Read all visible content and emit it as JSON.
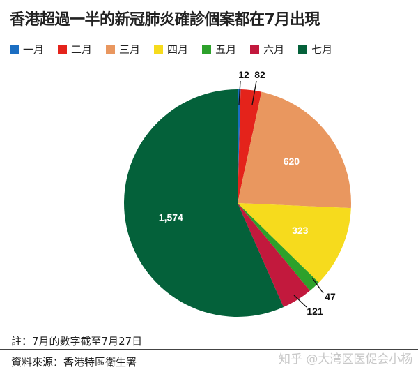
{
  "chart_data": {
    "type": "pie",
    "title": "香港超過一半的新冠肺炎確診個案都在7月出現",
    "legend_position": "top",
    "categories": [
      "一月",
      "二月",
      "三月",
      "四月",
      "五月",
      "六月",
      "七月"
    ],
    "values": [
      12,
      82,
      620,
      323,
      47,
      121,
      1574
    ],
    "data_labels": [
      "12",
      "82",
      "620",
      "323",
      "47",
      "121",
      "1,574"
    ],
    "colors": [
      "#1b6ec2",
      "#e4231b",
      "#e9975f",
      "#f6db1d",
      "#2da12b",
      "#c2193d",
      "#04613a"
    ]
  },
  "footer": {
    "note": "註：7月的數字截至7月27日",
    "source": "資料來源：香港特區衛生署",
    "watermark": "知乎 @大湾区医促会小杨"
  }
}
